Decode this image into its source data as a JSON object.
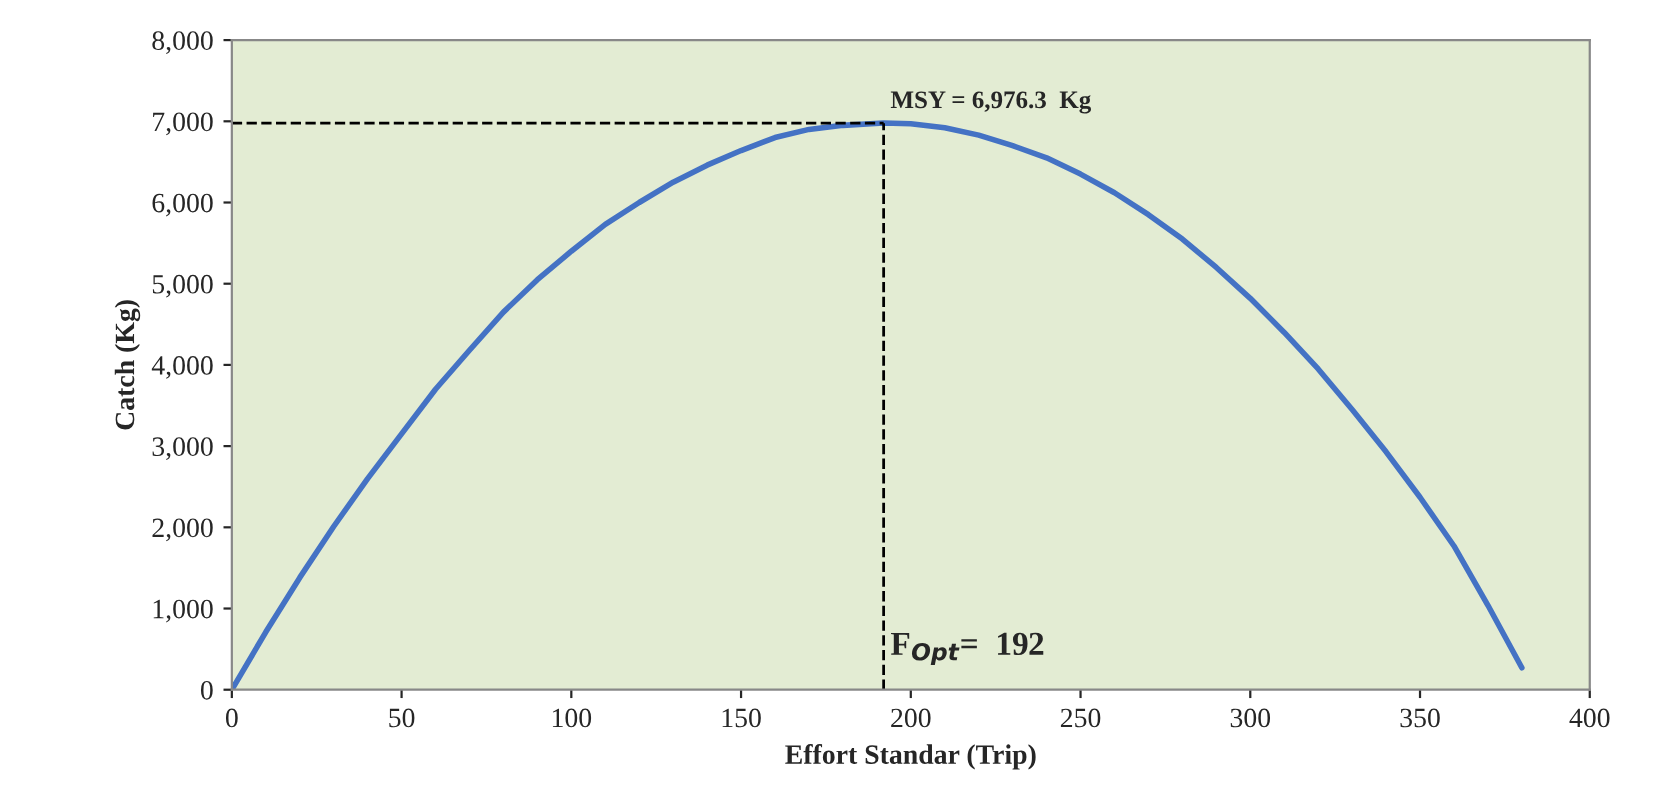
{
  "chart_data": {
    "type": "line",
    "xlabel": "Effort Standar (Trip)",
    "ylabel": "Catch (Kg)",
    "xlim": [
      0,
      400
    ],
    "xticks": [
      0,
      50,
      100,
      150,
      200,
      250,
      300,
      350,
      400
    ],
    "ylim": [
      0,
      8000
    ],
    "yticks": [
      0,
      {
        "value": 1000,
        "label": "1,000"
      },
      {
        "value": 2000,
        "label": "2,000"
      },
      {
        "value": 3000,
        "label": "3,000"
      },
      {
        "value": 4000,
        "label": "4,000"
      },
      {
        "value": 5000,
        "label": "5,000"
      },
      {
        "value": 6000,
        "label": "6,000"
      },
      {
        "value": 7000,
        "label": "7,000"
      },
      {
        "value": 8000,
        "label": "8,000"
      }
    ],
    "series": [
      {
        "color": "#4472c4",
        "x": [
          0,
          10,
          20,
          30,
          40,
          50,
          60,
          70,
          80,
          90,
          100,
          110,
          120,
          130,
          140,
          150,
          160,
          170,
          180,
          192,
          200,
          210,
          220,
          230,
          240,
          250,
          260,
          270,
          280,
          290,
          300,
          310,
          320,
          330,
          340,
          350,
          360,
          370,
          380
        ],
        "values": [
          0,
          710,
          1380,
          2010,
          2600,
          3150,
          3700,
          4180,
          4650,
          5050,
          5400,
          5730,
          6000,
          6250,
          6460,
          6640,
          6800,
          6900,
          6950,
          6980,
          6970,
          6920,
          6830,
          6700,
          6550,
          6350,
          6120,
          5850,
          5550,
          5200,
          4820,
          4400,
          3950,
          3450,
          2930,
          2370,
          1770,
          1040,
          270
        ]
      }
    ],
    "ref_lines": [
      {
        "axis": "y",
        "value": 6976.3,
        "label": "MSY = 6,976.3  Kg",
        "line_style": "dashed",
        "color": "#000000"
      },
      {
        "axis": "x",
        "value": 192,
        "label": "F$_{Opt}$=  192",
        "line_style": "dashed",
        "color": "#000000"
      }
    ],
    "grid": false,
    "marker": "none",
    "line_style": "solid"
  }
}
